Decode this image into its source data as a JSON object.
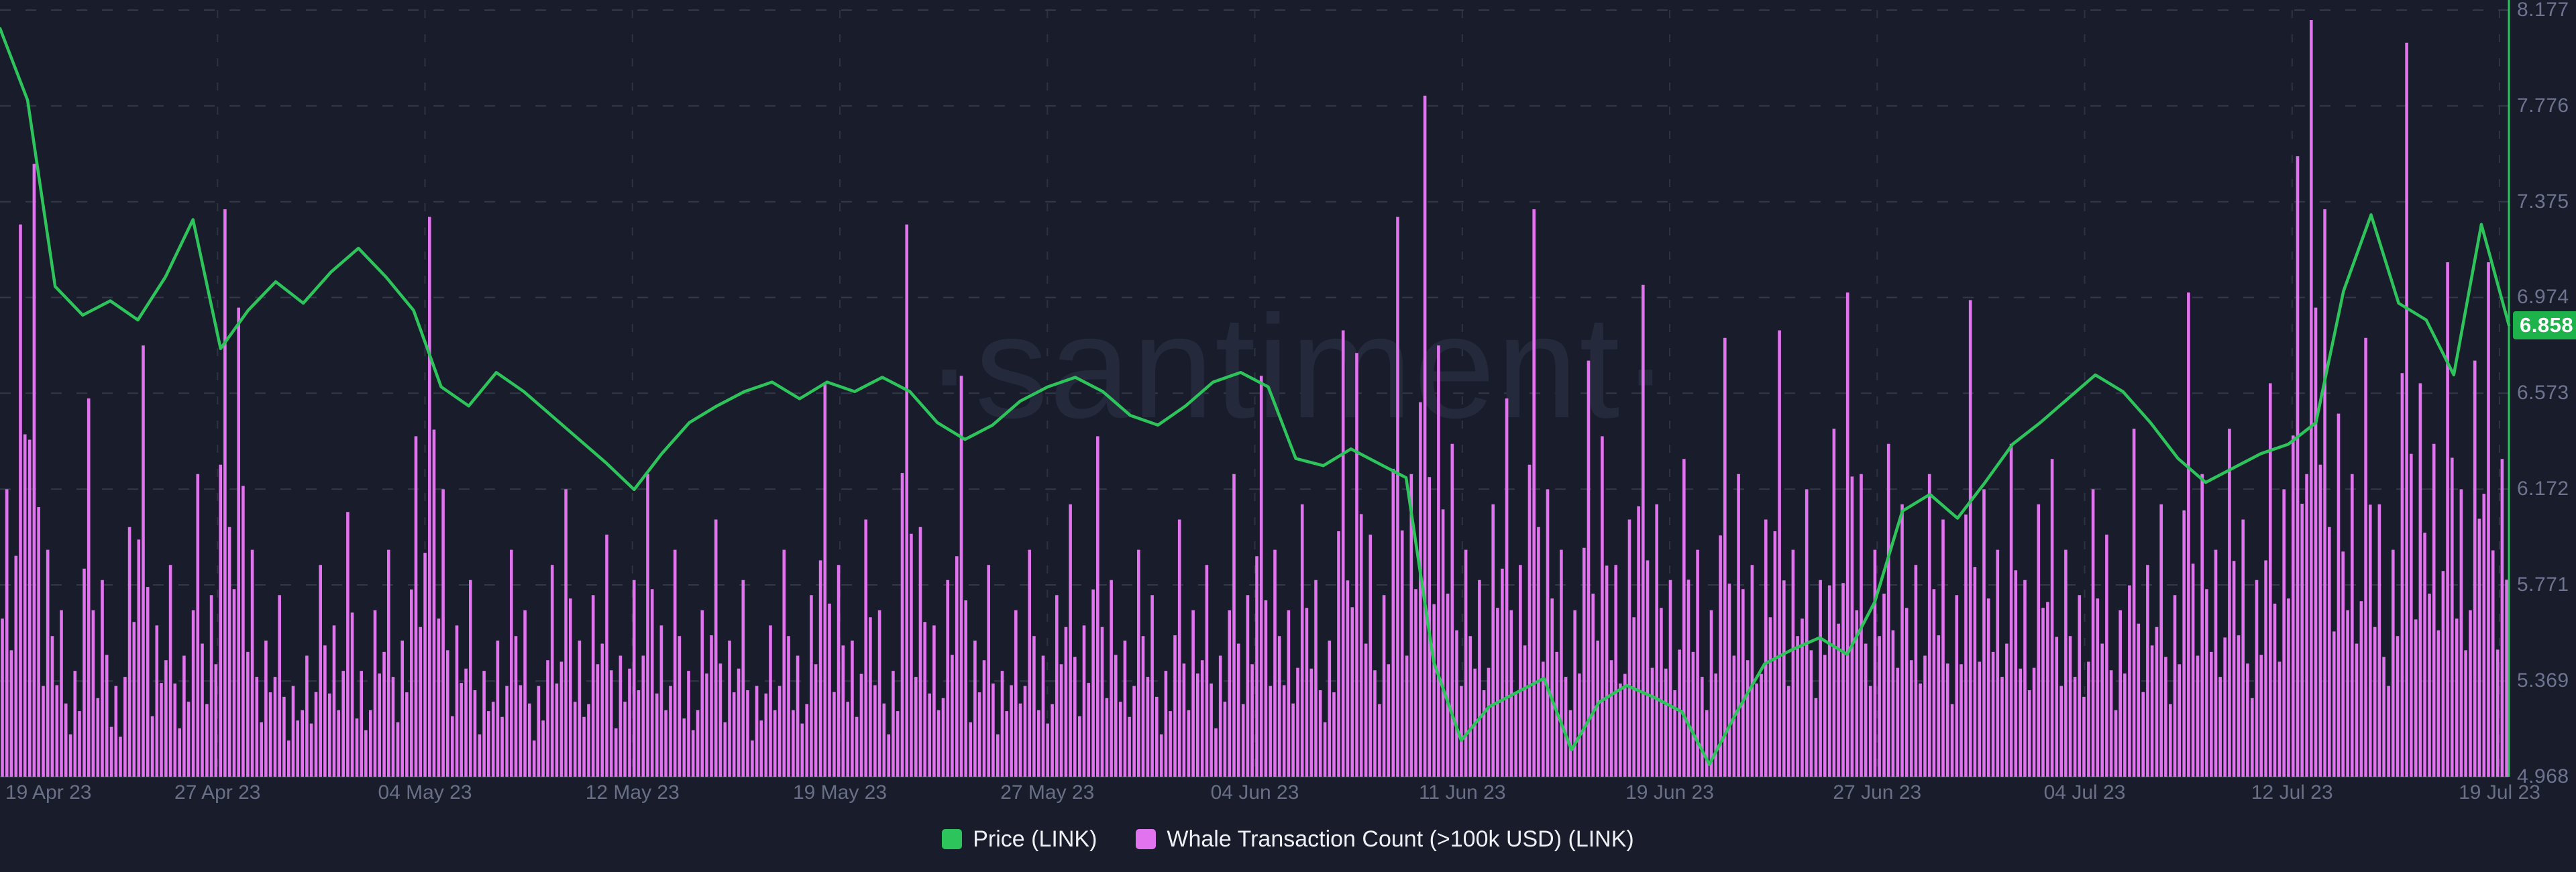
{
  "watermark": "·santiment·",
  "price_badge": {
    "value": "6.858",
    "bg": "#1db24a"
  },
  "legend": {
    "items": [
      {
        "label": "Price (LINK)",
        "color": "#2ec45c"
      },
      {
        "label": "Whale Transaction Count (>100k USD) (LINK)",
        "color": "#e273ee"
      }
    ]
  },
  "colors": {
    "background": "#191c2b",
    "grid": "#333949",
    "axis_green": "#2ec45c",
    "price_line": "#2ec45c",
    "bar_magenta": "#e273ee",
    "tick_label": "#6e7490",
    "x_label": "#686f86",
    "legend_text": "#eef0f6",
    "watermark": "#242a3c",
    "badge_bg": "#1db24a",
    "baseline": "#262b3a"
  },
  "chart_data": {
    "type": "mixed",
    "title": "",
    "x_range": [
      "19 Apr 23",
      "19 Jul 23"
    ],
    "x_tick_labels": [
      "19 Apr 23",
      "27 Apr 23",
      "04 May 23",
      "12 May 23",
      "19 May 23",
      "27 May 23",
      "04 Jun 23",
      "11 Jun 23",
      "19 Jun 23",
      "27 Jun 23",
      "04 Jul 23",
      "12 Jul 23",
      "19 Jul 23"
    ],
    "y_axis_right": {
      "ticks": [
        8.177,
        7.776,
        7.375,
        6.974,
        6.573,
        6.172,
        5.771,
        5.369,
        4.968
      ],
      "min": 4.968,
      "max": 8.177,
      "current_price_marker": 6.858
    },
    "grid": "dashed",
    "legend_position": "bottom-center",
    "series": [
      {
        "name": "Price (LINK)",
        "type": "line",
        "color": "#2ec45c",
        "unit": "USD",
        "note": "approx. daily values 19 Apr 23 - 19 Jul 23, read from chart",
        "values": [
          8.1,
          7.8,
          7.02,
          6.9,
          6.96,
          6.88,
          7.06,
          7.3,
          6.76,
          6.92,
          7.04,
          6.95,
          7.08,
          7.18,
          7.06,
          6.92,
          6.6,
          6.52,
          6.66,
          6.58,
          6.48,
          6.38,
          6.28,
          6.17,
          6.32,
          6.45,
          6.52,
          6.58,
          6.62,
          6.55,
          6.62,
          6.58,
          6.64,
          6.58,
          6.45,
          6.38,
          6.44,
          6.54,
          6.6,
          6.64,
          6.58,
          6.48,
          6.44,
          6.52,
          6.62,
          6.66,
          6.6,
          6.3,
          6.27,
          6.34,
          6.28,
          6.22,
          5.45,
          5.12,
          5.26,
          5.32,
          5.38,
          5.08,
          5.28,
          5.35,
          5.3,
          5.24,
          5.02,
          5.24,
          5.44,
          5.5,
          5.55,
          5.48,
          5.7,
          6.08,
          6.15,
          6.05,
          6.2,
          6.36,
          6.45,
          6.55,
          6.65,
          6.58,
          6.45,
          6.3,
          6.2,
          6.26,
          6.32,
          6.36,
          6.45,
          7.0,
          7.32,
          6.95,
          6.88,
          6.65,
          7.28,
          6.858
        ]
      },
      {
        "name": "Whale Transaction Count (>100k USD) (LINK)",
        "type": "bar",
        "color": "#e273ee",
        "unit": "relative height %, count axis not shown on chart",
        "note": "approx. half-day buckets 19 Apr 23 - 19 Jul 23; 100 = tallest spike (~13 Jul)",
        "values": [
          38,
          73,
          81,
          30,
          22,
          14,
          50,
          26,
          12,
          33,
          57,
          20,
          28,
          16,
          40,
          24,
          75,
          62,
          30,
          18,
          24,
          12,
          16,
          28,
          20,
          35,
          14,
          22,
          30,
          18,
          45,
          74,
          38,
          20,
          26,
          14,
          18,
          30,
          22,
          12,
          28,
          38,
          18,
          24,
          32,
          16,
          26,
          40,
          20,
          30,
          14,
          22,
          34,
          18,
          26,
          12,
          20,
          30,
          16,
          24,
          52,
          28,
          18,
          34,
          22,
          14,
          73,
          33,
          20,
          26,
          53,
          18,
          28,
          14,
          22,
          30,
          16,
          24,
          36,
          20,
          45,
          26,
          18,
          30,
          24,
          14,
          34,
          22,
          28,
          16,
          40,
          24,
          53,
          30,
          22,
          36,
          26,
          18,
          59,
          56,
          32,
          24,
          74,
          40,
          90,
          57,
          44,
          30,
          26,
          36,
          50,
          28,
          75,
          38,
          30,
          22,
          55,
          45,
          28,
          34,
          65,
          36,
          26,
          42,
          30,
          22,
          58,
          40,
          28,
          34,
          59,
          30,
          38,
          26,
          46,
          64,
          40,
          30,
          44,
          36,
          28,
          40,
          34,
          24,
          63,
          38,
          30,
          44,
          26,
          36,
          42,
          30,
          24,
          38,
          32,
          22,
          46,
          28,
          36,
          24,
          64,
          40,
          30,
          46,
          34,
          26,
          52,
          38,
          82,
          100,
          75,
          48,
          40,
          58,
          36,
          30,
          97,
          52,
          44,
          68,
          38,
          55,
          68,
          42
        ]
      }
    ]
  }
}
